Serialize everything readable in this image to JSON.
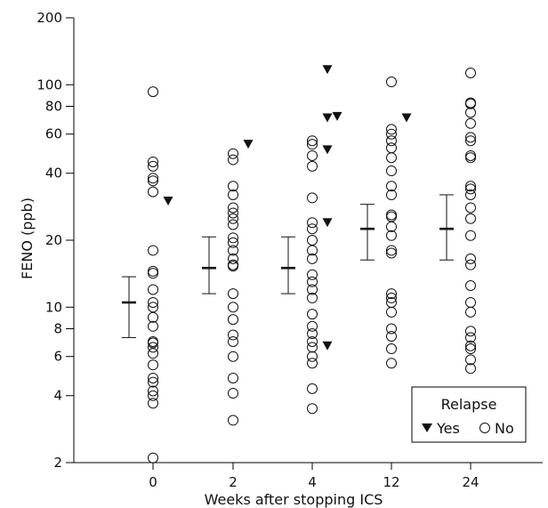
{
  "chart_data": {
    "type": "scatter",
    "xlabel": "Weeks after stopping ICS",
    "ylabel": "FENO (ppb)",
    "yscale": "log",
    "ylim": [
      2,
      200
    ],
    "yticks": [
      2,
      4,
      6,
      8,
      10,
      20,
      40,
      60,
      80,
      100,
      200
    ],
    "categories": [
      "0",
      "2",
      "4",
      "12",
      "24"
    ],
    "legend": {
      "title": "Relapse",
      "placement": "bottom-right",
      "entries": [
        {
          "label": "Yes",
          "marker": "filled-triangle"
        },
        {
          "label": "No",
          "marker": "open-circle"
        }
      ]
    },
    "series": [
      {
        "name": "No",
        "marker": "open-circle",
        "points": [
          {
            "cat": "0",
            "y": 93
          },
          {
            "cat": "0",
            "y": 45
          },
          {
            "cat": "0",
            "y": 43
          },
          {
            "cat": "0",
            "y": 38
          },
          {
            "cat": "0",
            "y": 37
          },
          {
            "cat": "0",
            "y": 33
          },
          {
            "cat": "0",
            "y": 18
          },
          {
            "cat": "0",
            "y": 14.5
          },
          {
            "cat": "0",
            "y": 14.2
          },
          {
            "cat": "0",
            "y": 12
          },
          {
            "cat": "0",
            "y": 10.5
          },
          {
            "cat": "0",
            "y": 10
          },
          {
            "cat": "0",
            "y": 9
          },
          {
            "cat": "0",
            "y": 8.2
          },
          {
            "cat": "0",
            "y": 7
          },
          {
            "cat": "0",
            "y": 6.9
          },
          {
            "cat": "0",
            "y": 6.6
          },
          {
            "cat": "0",
            "y": 6.2
          },
          {
            "cat": "0",
            "y": 5.5
          },
          {
            "cat": "0",
            "y": 4.8
          },
          {
            "cat": "0",
            "y": 4.6
          },
          {
            "cat": "0",
            "y": 4.2
          },
          {
            "cat": "0",
            "y": 4.0
          },
          {
            "cat": "0",
            "y": 3.7
          },
          {
            "cat": "0",
            "y": 2.1
          },
          {
            "cat": "2",
            "y": 49
          },
          {
            "cat": "2",
            "y": 46
          },
          {
            "cat": "2",
            "y": 35
          },
          {
            "cat": "2",
            "y": 32
          },
          {
            "cat": "2",
            "y": 28
          },
          {
            "cat": "2",
            "y": 26.5
          },
          {
            "cat": "2",
            "y": 25
          },
          {
            "cat": "2",
            "y": 23.5
          },
          {
            "cat": "2",
            "y": 20.5
          },
          {
            "cat": "2",
            "y": 19.5
          },
          {
            "cat": "2",
            "y": 18
          },
          {
            "cat": "2",
            "y": 16.5
          },
          {
            "cat": "2",
            "y": 15.5
          },
          {
            "cat": "2",
            "y": 15.3
          },
          {
            "cat": "2",
            "y": 11.5
          },
          {
            "cat": "2",
            "y": 10
          },
          {
            "cat": "2",
            "y": 8.8
          },
          {
            "cat": "2",
            "y": 7.5
          },
          {
            "cat": "2",
            "y": 7
          },
          {
            "cat": "2",
            "y": 6
          },
          {
            "cat": "2",
            "y": 4.8
          },
          {
            "cat": "2",
            "y": 4.1
          },
          {
            "cat": "2",
            "y": 3.1
          },
          {
            "cat": "4",
            "y": 56
          },
          {
            "cat": "4",
            "y": 54
          },
          {
            "cat": "4",
            "y": 48
          },
          {
            "cat": "4",
            "y": 43
          },
          {
            "cat": "4",
            "y": 31
          },
          {
            "cat": "4",
            "y": 24
          },
          {
            "cat": "4",
            "y": 22.5
          },
          {
            "cat": "4",
            "y": 20
          },
          {
            "cat": "4",
            "y": 18
          },
          {
            "cat": "4",
            "y": 16.5
          },
          {
            "cat": "4",
            "y": 14
          },
          {
            "cat": "4",
            "y": 13
          },
          {
            "cat": "4",
            "y": 12
          },
          {
            "cat": "4",
            "y": 11
          },
          {
            "cat": "4",
            "y": 9.3
          },
          {
            "cat": "4",
            "y": 8.2
          },
          {
            "cat": "4",
            "y": 7.6
          },
          {
            "cat": "4",
            "y": 7
          },
          {
            "cat": "4",
            "y": 6.6
          },
          {
            "cat": "4",
            "y": 6
          },
          {
            "cat": "4",
            "y": 5.6
          },
          {
            "cat": "4",
            "y": 4.3
          },
          {
            "cat": "4",
            "y": 3.5
          },
          {
            "cat": "12",
            "y": 103
          },
          {
            "cat": "12",
            "y": 63
          },
          {
            "cat": "12",
            "y": 60
          },
          {
            "cat": "12",
            "y": 56
          },
          {
            "cat": "12",
            "y": 52
          },
          {
            "cat": "12",
            "y": 47
          },
          {
            "cat": "12",
            "y": 41
          },
          {
            "cat": "12",
            "y": 35
          },
          {
            "cat": "12",
            "y": 32
          },
          {
            "cat": "12",
            "y": 26
          },
          {
            "cat": "12",
            "y": 25.5
          },
          {
            "cat": "12",
            "y": 23
          },
          {
            "cat": "12",
            "y": 21
          },
          {
            "cat": "12",
            "y": 18
          },
          {
            "cat": "12",
            "y": 17.5
          },
          {
            "cat": "12",
            "y": 11.5
          },
          {
            "cat": "12",
            "y": 11
          },
          {
            "cat": "12",
            "y": 10.5
          },
          {
            "cat": "12",
            "y": 9.5
          },
          {
            "cat": "12",
            "y": 8
          },
          {
            "cat": "12",
            "y": 7.4
          },
          {
            "cat": "12",
            "y": 6.5
          },
          {
            "cat": "12",
            "y": 5.6
          },
          {
            "cat": "24",
            "y": 113
          },
          {
            "cat": "24",
            "y": 83
          },
          {
            "cat": "24",
            "y": 82
          },
          {
            "cat": "24",
            "y": 75
          },
          {
            "cat": "24",
            "y": 67
          },
          {
            "cat": "24",
            "y": 58
          },
          {
            "cat": "24",
            "y": 56
          },
          {
            "cat": "24",
            "y": 48
          },
          {
            "cat": "24",
            "y": 47
          },
          {
            "cat": "24",
            "y": 35
          },
          {
            "cat": "24",
            "y": 34
          },
          {
            "cat": "24",
            "y": 32
          },
          {
            "cat": "24",
            "y": 28
          },
          {
            "cat": "24",
            "y": 25
          },
          {
            "cat": "24",
            "y": 21
          },
          {
            "cat": "24",
            "y": 16.5
          },
          {
            "cat": "24",
            "y": 15.5
          },
          {
            "cat": "24",
            "y": 12.5
          },
          {
            "cat": "24",
            "y": 10.5
          },
          {
            "cat": "24",
            "y": 9.5
          },
          {
            "cat": "24",
            "y": 7.8
          },
          {
            "cat": "24",
            "y": 7.3
          },
          {
            "cat": "24",
            "y": 6.7
          },
          {
            "cat": "24",
            "y": 6.5
          },
          {
            "cat": "24",
            "y": 5.8
          },
          {
            "cat": "24",
            "y": 5.3
          }
        ]
      },
      {
        "name": "Yes",
        "marker": "filled-triangle",
        "points": [
          {
            "cat": "0",
            "y": 30,
            "offset": "right"
          },
          {
            "cat": "2",
            "y": 54,
            "offset": "right"
          },
          {
            "cat": "4",
            "y": 117,
            "offset": "right"
          },
          {
            "cat": "4",
            "y": 71,
            "offset": "right"
          },
          {
            "cat": "4",
            "y": 72,
            "offset": "far-right"
          },
          {
            "cat": "4",
            "y": 51,
            "offset": "right"
          },
          {
            "cat": "4",
            "y": 24,
            "offset": "right"
          },
          {
            "cat": "4",
            "y": 6.7,
            "offset": "right"
          },
          {
            "cat": "12",
            "y": 71,
            "offset": "right"
          }
        ]
      }
    ],
    "summary": [
      {
        "cat": "0",
        "center": 10.5,
        "low": 7.3,
        "high": 13.7
      },
      {
        "cat": "2",
        "center": 15,
        "low": 11.5,
        "high": 20.7
      },
      {
        "cat": "4",
        "center": 15,
        "low": 11.5,
        "high": 20.7
      },
      {
        "cat": "12",
        "center": 22.5,
        "low": 16.3,
        "high": 29
      },
      {
        "cat": "24",
        "center": 22.5,
        "low": 16.3,
        "high": 32
      }
    ]
  }
}
